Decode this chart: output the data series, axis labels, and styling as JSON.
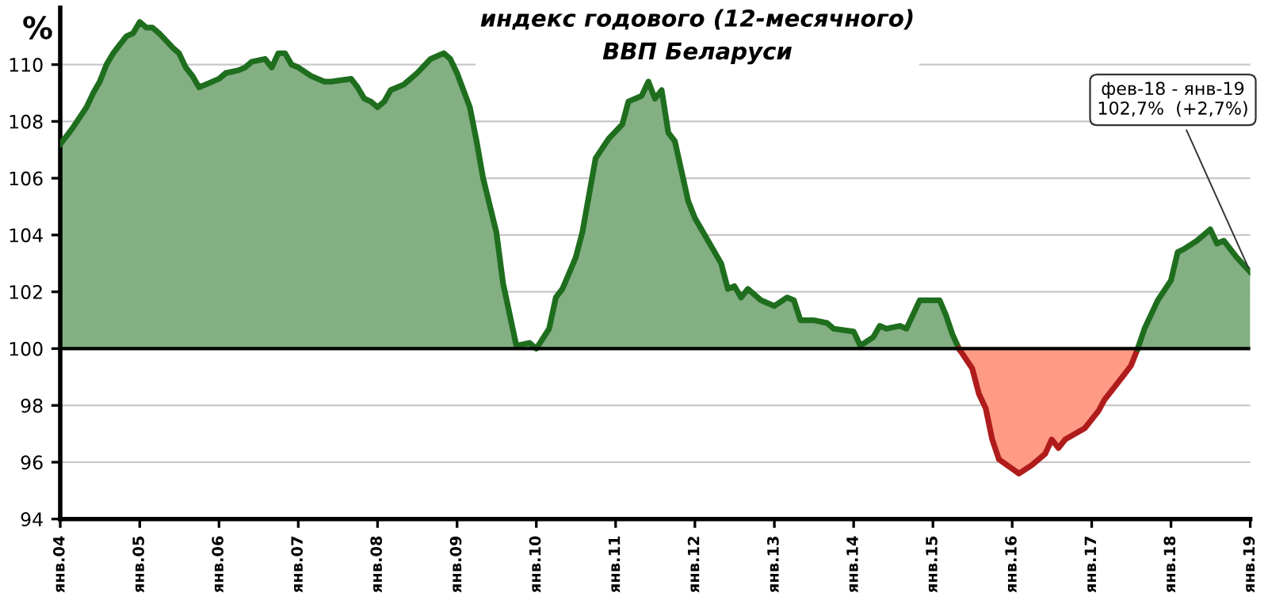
{
  "chart_data": {
    "type": "area",
    "title": "индекс годового (12-месячного)\nВВП Беларуси",
    "ylabel": "%",
    "series": [
      {
        "color": "#1e6e1e",
        "x": [
          "2004-01",
          "2004-02",
          "2004-03",
          "2004-05",
          "2004-06",
          "2004-07",
          "2004-08",
          "2004-09",
          "2004-10",
          "2004-11",
          "2004-12",
          "2005-01",
          "2005-02",
          "2005-03",
          "2005-04",
          "2005-06",
          "2005-07",
          "2005-08",
          "2005-09",
          "2005-10",
          "2005-11",
          "2006-01",
          "2006-02",
          "2006-04",
          "2006-05",
          "2006-06",
          "2006-08",
          "2006-09",
          "2006-10",
          "2006-11",
          "2006-12",
          "2007-01",
          "2007-03",
          "2007-05",
          "2007-06",
          "2007-09",
          "2007-10",
          "2007-11",
          "2007-12",
          "2008-01",
          "2008-02",
          "2008-03",
          "2008-05",
          "2008-06",
          "2008-07",
          "2008-09",
          "2008-10",
          "2008-11",
          "2008-12",
          "2009-01",
          "2009-03",
          "2009-04",
          "2009-05",
          "2009-07",
          "2009-08",
          "2009-10",
          "2009-12",
          "2010-01",
          "2010-03",
          "2010-04",
          "2010-05",
          "2010-07",
          "2010-08",
          "2010-10",
          "2010-12",
          "2011-02",
          "2011-03",
          "2011-05",
          "2011-06",
          "2011-07",
          "2011-08",
          "2011-09",
          "2011-10",
          "2011-12",
          "2012-01",
          "2012-05",
          "2012-06",
          "2012-07",
          "2012-08",
          "2012-09",
          "2012-11",
          "2013-01",
          "2013-03",
          "2013-04",
          "2013-05",
          "2013-07",
          "2013-09",
          "2013-10",
          "2014-01",
          "2014-02",
          "2014-04",
          "2014-05",
          "2014-06",
          "2014-08",
          "2014-09",
          "2014-11",
          "2015-02",
          "2015-03",
          "2015-04",
          "2015-05"
        ],
        "values": [
          107.2,
          107.5,
          107.8,
          108.5,
          109.0,
          109.4,
          110.0,
          110.4,
          110.7,
          111.0,
          111.1,
          111.5,
          111.3,
          111.3,
          111.1,
          110.6,
          110.4,
          109.9,
          109.6,
          109.2,
          109.3,
          109.5,
          109.7,
          109.8,
          109.9,
          110.1,
          110.2,
          109.9,
          110.4,
          110.4,
          110.0,
          109.9,
          109.6,
          109.4,
          109.4,
          109.5,
          109.2,
          108.8,
          108.7,
          108.5,
          108.7,
          109.1,
          109.3,
          109.5,
          109.7,
          110.2,
          110.3,
          110.4,
          110.2,
          109.7,
          108.5,
          107.3,
          106.0,
          104.1,
          102.3,
          100.1,
          100.2,
          100.0,
          100.7,
          101.8,
          102.1,
          103.2,
          104.1,
          106.7,
          107.4,
          107.9,
          108.7,
          108.9,
          109.4,
          108.8,
          109.1,
          107.6,
          107.3,
          105.2,
          104.6,
          103.0,
          102.1,
          102.2,
          101.8,
          102.1,
          101.7,
          101.5,
          101.8,
          101.7,
          101.0,
          101.0,
          100.9,
          100.7,
          100.6,
          100.1,
          100.4,
          100.8,
          100.7,
          100.8,
          100.7,
          101.7,
          101.7,
          101.2,
          100.5,
          100.0
        ]
      },
      {
        "type": "line",
        "color": "#b01c1c",
        "x": [
          "2015-05",
          "2015-07",
          "2015-08",
          "2015-09",
          "2015-10",
          "2015-11",
          "2016-02",
          "2016-04",
          "2016-06",
          "2016-07",
          "2016-08",
          "2016-09",
          "2016-12",
          "2017-02",
          "2017-03",
          "2017-04",
          "2017-06",
          "2017-07",
          "2017-08"
        ],
        "values": [
          100.0,
          99.3,
          98.4,
          97.9,
          96.8,
          96.1,
          95.6,
          95.9,
          96.3,
          96.8,
          96.5,
          96.8,
          97.2,
          97.8,
          98.2,
          98.5,
          99.1,
          99.4,
          100.0
        ]
      },
      {
        "color": "#1e6e1e",
        "x": [
          "2017-08",
          "2017-09",
          "2017-11",
          "2018-01",
          "2018-02",
          "2018-03",
          "2018-05",
          "2018-07",
          "2018-08",
          "2018-09",
          "2018-11",
          "2019-01"
        ],
        "values": [
          100.0,
          100.7,
          101.7,
          102.4,
          103.4,
          103.5,
          103.8,
          104.2,
          103.7,
          103.8,
          103.2,
          102.7
        ]
      }
    ],
    "xlim": [
      "2004-01",
      "2019-01"
    ],
    "xticks": [
      {
        "value": "2004-01",
        "label": "янв.04"
      },
      {
        "value": "2005-01",
        "label": "янв.05"
      },
      {
        "value": "2006-01",
        "label": "янв.06"
      },
      {
        "value": "2007-01",
        "label": "янв.07"
      },
      {
        "value": "2008-01",
        "label": "янв.08"
      },
      {
        "value": "2009-01",
        "label": "янв.09"
      },
      {
        "value": "2010-01",
        "label": "янв.10"
      },
      {
        "value": "2011-01",
        "label": "янв.11"
      },
      {
        "value": "2012-01",
        "label": "янв.12"
      },
      {
        "value": "2013-01",
        "label": "янв.13"
      },
      {
        "value": "2014-01",
        "label": "янв.14"
      },
      {
        "value": "2015-01",
        "label": "янв.15"
      },
      {
        "value": "2016-01",
        "label": "янв.16"
      },
      {
        "value": "2017-01",
        "label": "янв.17"
      },
      {
        "value": "2018-01",
        "label": "янв.18"
      },
      {
        "value": "2019-01",
        "label": "янв.19"
      }
    ],
    "ylim": [
      94,
      112
    ],
    "yticks": [
      94,
      96,
      98,
      100,
      102,
      104,
      106,
      108,
      110
    ],
    "ref_lines": [
      {
        "axis": "y",
        "value": 100,
        "color": "#000000"
      }
    ],
    "annotations": [
      {
        "text": "фев-18 - янв-19\n102,7%  (+2,7%)",
        "x": "2019-01",
        "y": 102.7
      }
    ],
    "grid": "y",
    "legend": false
  }
}
